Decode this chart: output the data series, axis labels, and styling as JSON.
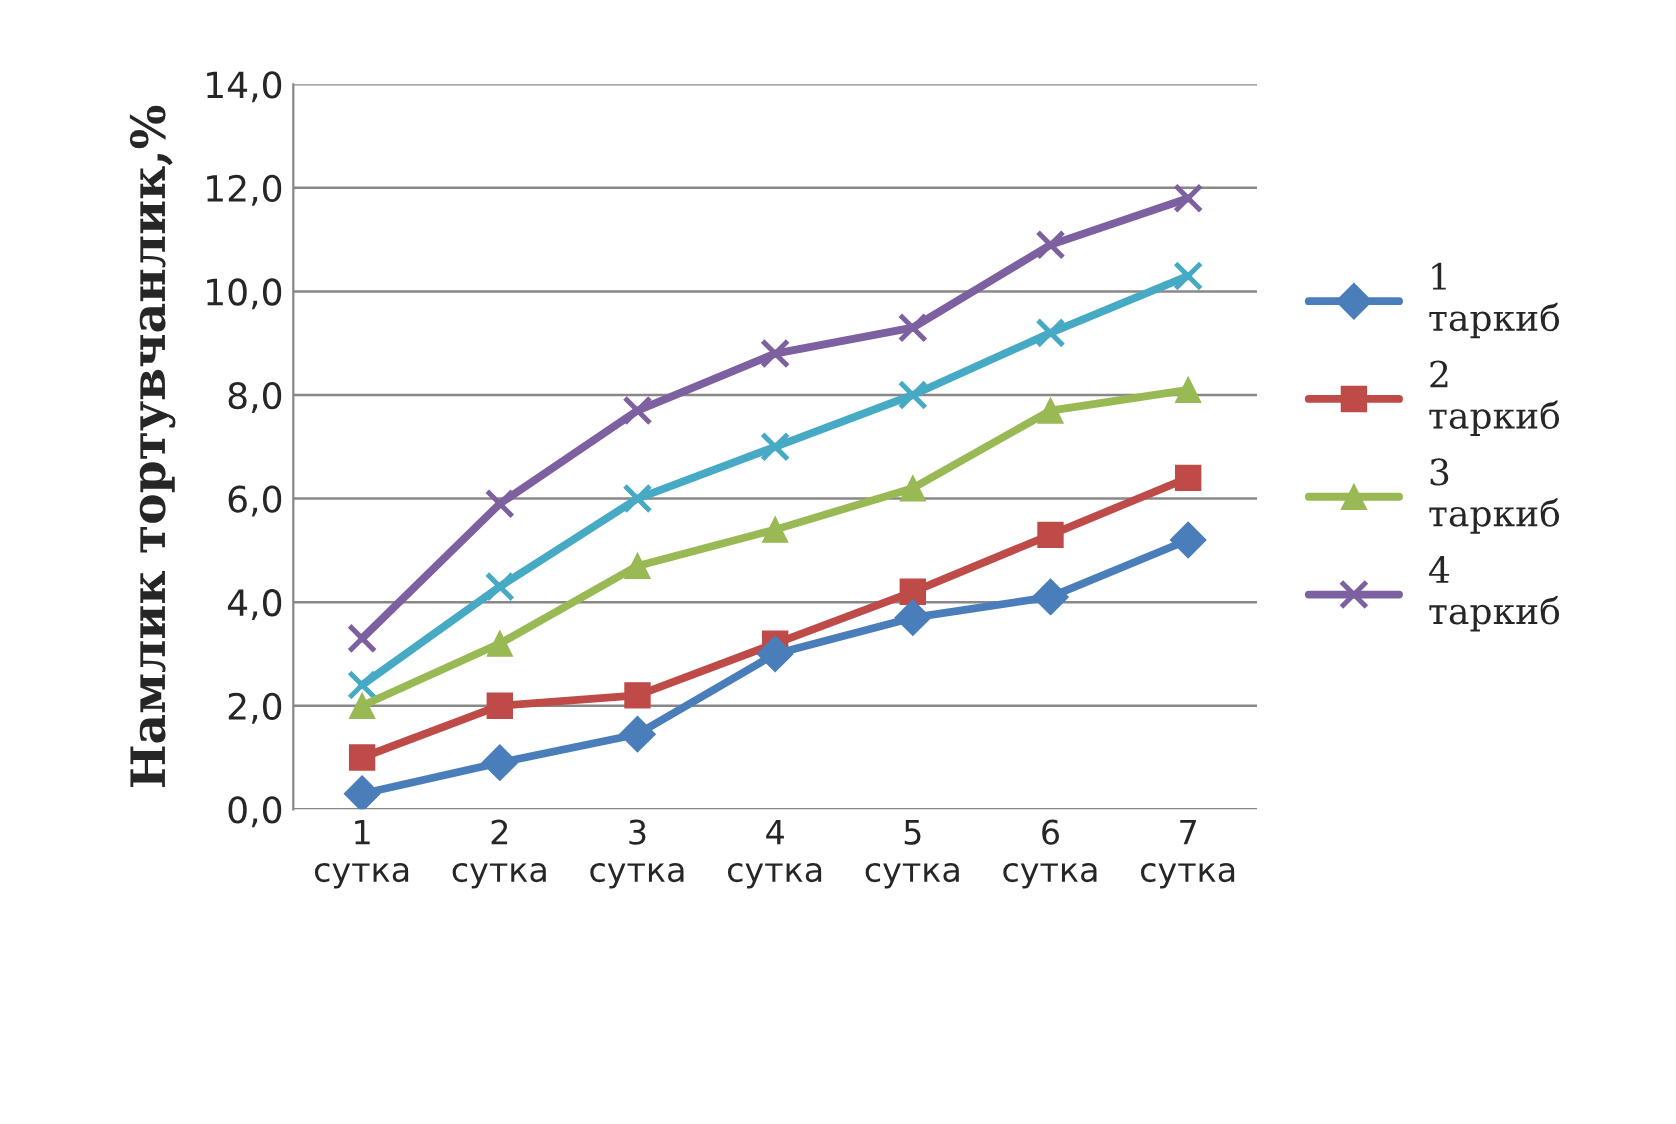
{
  "chart_data": {
    "type": "line",
    "ylabel": "Намлик тортувчанлик,%",
    "categories": [
      "1\nсутка",
      "2\nсутка",
      "3\nсутка",
      "4\nсутка",
      "5\nсутка",
      "6\nсутка",
      "7\nсутка"
    ],
    "series": [
      {
        "name": "1\nтаркиб",
        "color": "#4a7ebb",
        "marker": "diamond",
        "values": [
          0.3,
          0.9,
          1.45,
          3.0,
          3.7,
          4.1,
          5.2
        ]
      },
      {
        "name": "2\nтаркиб",
        "color": "#be4b48",
        "marker": "square",
        "values": [
          1.0,
          2.0,
          2.2,
          3.2,
          4.2,
          5.3,
          6.4
        ]
      },
      {
        "name": "3\nтаркиб",
        "color": "#98b954",
        "marker": "triangle",
        "values": [
          2.0,
          3.2,
          4.7,
          5.4,
          6.2,
          7.7,
          8.1
        ]
      },
      {
        "name": "4\nтаркиб",
        "color": "#7d60a0",
        "marker": "cross",
        "values": [
          3.3,
          5.9,
          7.7,
          8.8,
          9.3,
          10.9,
          11.8
        ]
      },
      {
        "color": "#46aac5",
        "marker": "cross",
        "values": [
          2.4,
          4.3,
          6.0,
          7.0,
          8.0,
          9.2,
          10.3
        ]
      }
    ],
    "ylim": [
      0,
      14
    ],
    "yticks": [
      {
        "value": 0,
        "label": "0,0"
      },
      {
        "value": 2,
        "label": "2,0"
      },
      {
        "value": 4,
        "label": "4,0"
      },
      {
        "value": 6,
        "label": "6,0"
      },
      {
        "value": 8,
        "label": "8,0"
      },
      {
        "value": 10,
        "label": "10,0"
      },
      {
        "value": 12,
        "label": "12,0"
      },
      {
        "value": 14,
        "label": "14,0"
      }
    ],
    "grid": "y",
    "legend": "right"
  }
}
